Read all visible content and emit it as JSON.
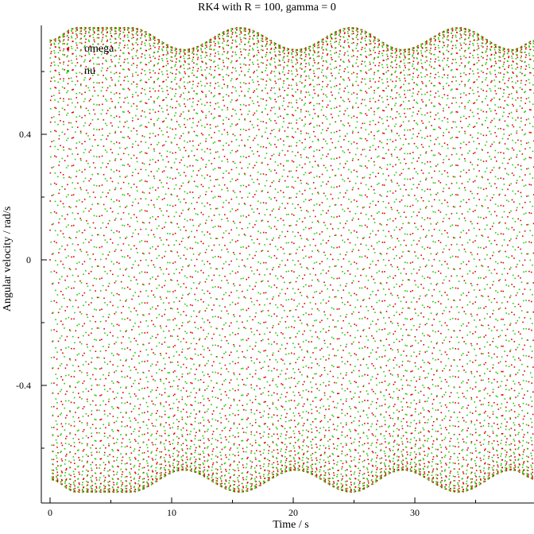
{
  "chart_data": {
    "type": "scatter",
    "title": "RK4 with R = 100, gamma = 0",
    "xlabel": "Time / s",
    "ylabel": "Angular velocity / rad/s",
    "xlim": [
      0,
      40
    ],
    "ylim": [
      -0.75,
      0.74
    ],
    "x_ticks": [
      0,
      10,
      20,
      30
    ],
    "x_tick_labels": [
      "0",
      "10",
      "20",
      "30"
    ],
    "y_ticks": [
      0.4,
      0,
      -0.4
    ],
    "y_tick_labels": [
      "0.4",
      "0",
      "-0.4"
    ],
    "legend": "top-left",
    "grid": false,
    "series": [
      {
        "name": "omega",
        "color": "#e00000",
        "model": "fast oscillation, carrier period ~0.355 s, sine phase from 0",
        "amplitude_envelope": {
          "x": [
            0,
            2.2,
            6.6,
            11.0,
            15.6,
            20.2,
            24.8,
            29.0,
            33.6,
            38.0,
            40
          ],
          "amplitude": [
            0.7,
            0.74,
            0.74,
            0.67,
            0.74,
            0.67,
            0.74,
            0.67,
            0.74,
            0.67,
            0.7
          ]
        }
      },
      {
        "name": "nu",
        "color": "#22cc00",
        "model": "fast oscillation, carrier period ~0.355 s, cosine phase",
        "amplitude_envelope": {
          "x": [
            0,
            2.2,
            6.6,
            11.0,
            15.6,
            20.2,
            24.8,
            29.0,
            33.6,
            38.0,
            40
          ],
          "amplitude": [
            0.7,
            0.74,
            0.74,
            0.67,
            0.74,
            0.67,
            0.74,
            0.67,
            0.74,
            0.67,
            0.7
          ]
        }
      }
    ]
  }
}
